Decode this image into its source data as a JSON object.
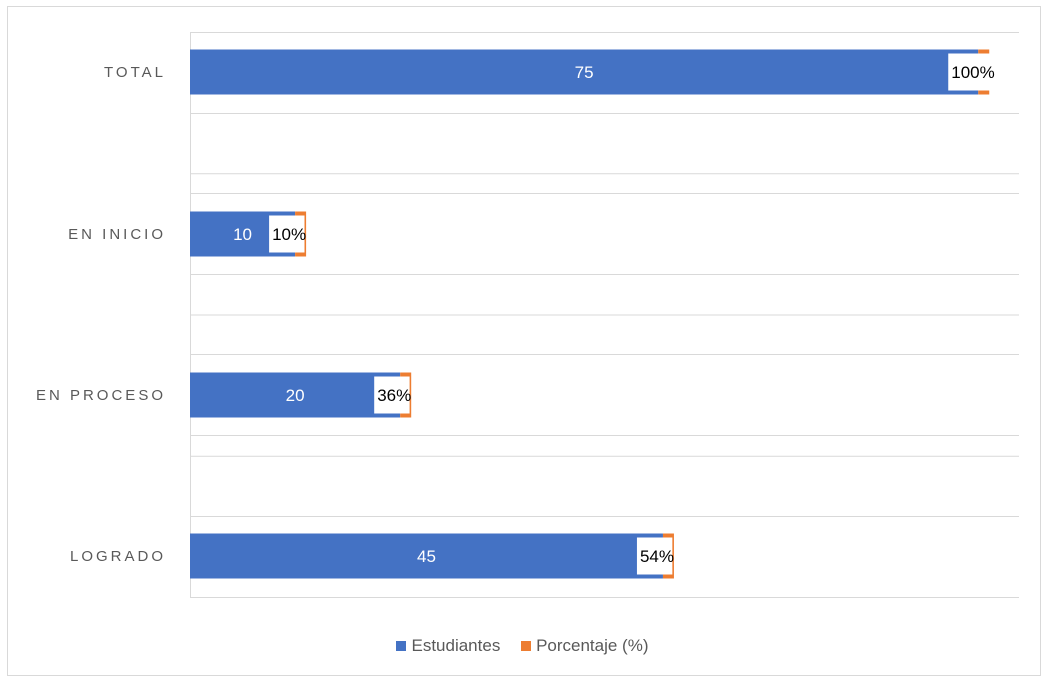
{
  "chart_data": {
    "type": "bar",
    "orientation": "horizontal",
    "stacked": true,
    "categories": [
      "TOTAL",
      "EN INICIO",
      "EN PROCESO",
      "LOGRADO"
    ],
    "series": [
      {
        "name": "Estudiantes",
        "color": "#4472C4",
        "values": [
          75,
          10,
          20,
          45
        ],
        "labels": [
          "75",
          "10",
          "20",
          "45"
        ]
      },
      {
        "name": "Porcentaje (%)",
        "color": "#ED7D31",
        "values": [
          1.0,
          0.1,
          0.36,
          0.54
        ],
        "labels": [
          "100%",
          "10%",
          "36%",
          "54%"
        ]
      }
    ],
    "xlim": [
      0,
      80
    ],
    "grid": true,
    "legend_position": "bottom"
  }
}
